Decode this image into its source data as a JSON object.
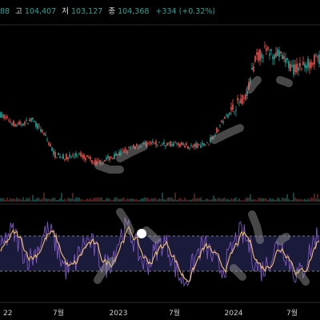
{
  "header": {
    "open_value": "88",
    "high_label": "고",
    "high_value": "104,407",
    "low_label": "저",
    "low_value": "103,127",
    "close_label": "종",
    "close_value": "104,368",
    "change": "+334 (+0.32%)"
  },
  "colors": {
    "background": "#000000",
    "up": "#26a69a",
    "down": "#ef5350",
    "indicator_fast": "#7e57c2",
    "indicator_slow": "#f5c26b",
    "band": "#1a1a3a",
    "band_line": "#9e9e9e",
    "highlight": "#9e9e9e"
  },
  "chart_data": [
    {
      "type": "candlestick",
      "xlabel": "",
      "ylabel": "",
      "x_ticks": [
        "22",
        "7월",
        "2023",
        "7월",
        "2024",
        "7월"
      ],
      "price_path": [
        [
          0.0,
          101.9
        ],
        [
          0.05,
          101.5
        ],
        [
          0.1,
          101.7
        ],
        [
          0.14,
          101.1
        ],
        [
          0.17,
          100.4
        ],
        [
          0.2,
          100.3
        ],
        [
          0.25,
          100.4
        ],
        [
          0.3,
          100.1
        ],
        [
          0.35,
          100.3
        ],
        [
          0.4,
          100.6
        ],
        [
          0.45,
          100.8
        ],
        [
          0.5,
          100.8
        ],
        [
          0.55,
          100.8
        ],
        [
          0.6,
          100.7
        ],
        [
          0.65,
          100.8
        ],
        [
          0.7,
          101.7
        ],
        [
          0.74,
          102.3
        ],
        [
          0.77,
          102.5
        ],
        [
          0.8,
          104.0
        ],
        [
          0.83,
          104.3
        ],
        [
          0.88,
          104.1
        ],
        [
          0.92,
          103.6
        ],
        [
          0.96,
          103.8
        ],
        [
          1.0,
          104.0
        ]
      ],
      "y_range": [
        99.0,
        105.0
      ],
      "volume": true,
      "highlights": [
        "2023-01 trough",
        "2023-03",
        "2023-11 breakout",
        "2024-02 peak",
        "2024-04 peak"
      ]
    },
    {
      "type": "line",
      "series": [
        {
          "name": "",
          "role": "fast"
        },
        {
          "name": "",
          "role": "slow"
        }
      ],
      "band": [
        30,
        70
      ],
      "y_range": [
        0,
        100
      ],
      "highlights": [
        "2023-01 low",
        "2023-03 high",
        "2024-01 high",
        "2024-05 low"
      ]
    }
  ]
}
